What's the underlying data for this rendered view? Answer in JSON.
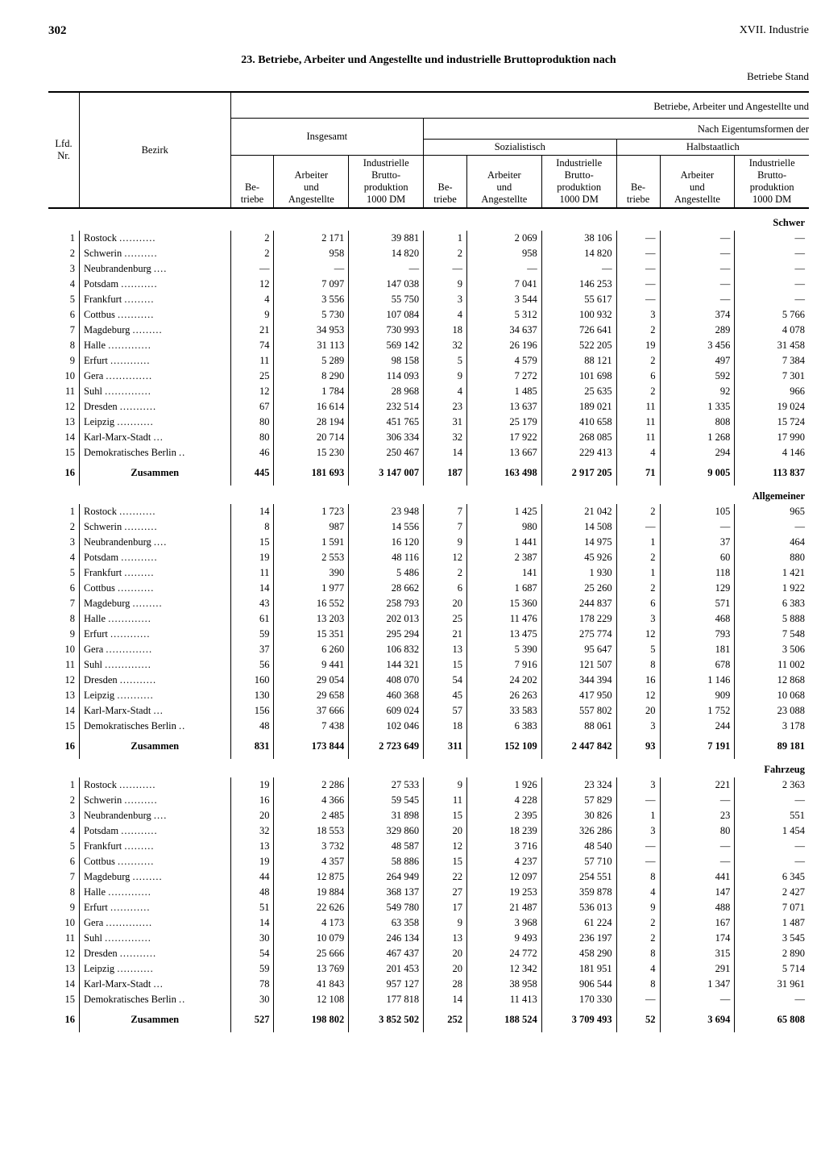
{
  "page_number": "302",
  "chapter": "XVII. Industrie",
  "title": "23. Betriebe, Arbeiter und Angestellte und industrielle Bruttoproduktion nach",
  "subtitle_right": "Betriebe Stand",
  "header": {
    "super_right": "Betriebe, Arbeiter und Angestellte und",
    "nach_eigentum": "Nach Eigentumsformen der",
    "lfd": "Lfd.\nNr.",
    "bezirk": "Bezirk",
    "insgesamt": "Insgesamt",
    "sozialistisch": "Sozialistisch",
    "halbstaatlich": "Halbstaatlich",
    "betriebe": "Be-\ntriebe",
    "arbeiter": "Arbeiter\nund\nAngestellte",
    "brutto": "Industrielle\nBrutto-\nproduktion\n1000 DM"
  },
  "section_labels": [
    "Schwer",
    "Allgemeiner",
    "Fahrzeug"
  ],
  "districts": [
    "Rostock",
    "Schwerin",
    "Neubrandenburg",
    "Potsdam",
    "Frankfurt",
    "Cottbus",
    "Magdeburg",
    "Halle",
    "Erfurt",
    "Gera",
    "Suhl",
    "Dresden",
    "Leipzig",
    "Karl-Marx-Stadt",
    "Demokratisches Berlin"
  ],
  "zusammen_label": "Zusammen",
  "sections": [
    {
      "rows": [
        [
          "2",
          "2 171",
          "39 881",
          "1",
          "2 069",
          "38 106",
          "—",
          "—",
          "—"
        ],
        [
          "2",
          "958",
          "14 820",
          "2",
          "958",
          "14 820",
          "—",
          "—",
          "—"
        ],
        [
          "—",
          "—",
          "—",
          "—",
          "—",
          "—",
          "—",
          "—",
          "—"
        ],
        [
          "12",
          "7 097",
          "147 038",
          "9",
          "7 041",
          "146 253",
          "—",
          "—",
          "—"
        ],
        [
          "4",
          "3 556",
          "55 750",
          "3",
          "3 544",
          "55 617",
          "—",
          "—",
          "—"
        ],
        [
          "9",
          "5 730",
          "107 084",
          "4",
          "5 312",
          "100 932",
          "3",
          "374",
          "5 766"
        ],
        [
          "21",
          "34 953",
          "730 993",
          "18",
          "34 637",
          "726 641",
          "2",
          "289",
          "4 078"
        ],
        [
          "74",
          "31 113",
          "569 142",
          "32",
          "26 196",
          "522 205",
          "19",
          "3 456",
          "31 458"
        ],
        [
          "11",
          "5 289",
          "98 158",
          "5",
          "4 579",
          "88 121",
          "2",
          "497",
          "7 384"
        ],
        [
          "25",
          "8 290",
          "114 093",
          "9",
          "7 272",
          "101 698",
          "6",
          "592",
          "7 301"
        ],
        [
          "12",
          "1 784",
          "28 968",
          "4",
          "1 485",
          "25 635",
          "2",
          "92",
          "966"
        ],
        [
          "67",
          "16 614",
          "232 514",
          "23",
          "13 637",
          "189 021",
          "11",
          "1 335",
          "19 024"
        ],
        [
          "80",
          "28 194",
          "451 765",
          "31",
          "25 179",
          "410 658",
          "11",
          "808",
          "15 724"
        ],
        [
          "80",
          "20 714",
          "306 334",
          "32",
          "17 922",
          "268 085",
          "11",
          "1 268",
          "17 990"
        ],
        [
          "46",
          "15 230",
          "250 467",
          "14",
          "13 667",
          "229 413",
          "4",
          "294",
          "4 146"
        ]
      ],
      "sum": [
        "445",
        "181 693",
        "3 147 007",
        "187",
        "163 498",
        "2 917 205",
        "71",
        "9 005",
        "113 837"
      ]
    },
    {
      "rows": [
        [
          "14",
          "1 723",
          "23 948",
          "7",
          "1 425",
          "21 042",
          "2",
          "105",
          "965"
        ],
        [
          "8",
          "987",
          "14 556",
          "7",
          "980",
          "14 508",
          "—",
          "—",
          "—"
        ],
        [
          "15",
          "1 591",
          "16 120",
          "9",
          "1 441",
          "14 975",
          "1",
          "37",
          "464"
        ],
        [
          "19",
          "2 553",
          "48 116",
          "12",
          "2 387",
          "45 926",
          "2",
          "60",
          "880"
        ],
        [
          "11",
          "390",
          "5 486",
          "2",
          "141",
          "1 930",
          "1",
          "118",
          "1 421"
        ],
        [
          "14",
          "1 977",
          "28 662",
          "6",
          "1 687",
          "25 260",
          "2",
          "129",
          "1 922"
        ],
        [
          "43",
          "16 552",
          "258 793",
          "20",
          "15 360",
          "244 837",
          "6",
          "571",
          "6 383"
        ],
        [
          "61",
          "13 203",
          "202 013",
          "25",
          "11 476",
          "178 229",
          "3",
          "468",
          "5 888"
        ],
        [
          "59",
          "15 351",
          "295 294",
          "21",
          "13 475",
          "275 774",
          "12",
          "793",
          "7 548"
        ],
        [
          "37",
          "6 260",
          "106 832",
          "13",
          "5 390",
          "95 647",
          "5",
          "181",
          "3 506"
        ],
        [
          "56",
          "9 441",
          "144 321",
          "15",
          "7 916",
          "121 507",
          "8",
          "678",
          "11 002"
        ],
        [
          "160",
          "29 054",
          "408 070",
          "54",
          "24 202",
          "344 394",
          "16",
          "1 146",
          "12 868"
        ],
        [
          "130",
          "29 658",
          "460 368",
          "45",
          "26 263",
          "417 950",
          "12",
          "909",
          "10 068"
        ],
        [
          "156",
          "37 666",
          "609 024",
          "57",
          "33 583",
          "557 802",
          "20",
          "1 752",
          "23 088"
        ],
        [
          "48",
          "7 438",
          "102 046",
          "18",
          "6 383",
          "88 061",
          "3",
          "244",
          "3 178"
        ]
      ],
      "sum": [
        "831",
        "173 844",
        "2 723 649",
        "311",
        "152 109",
        "2 447 842",
        "93",
        "7 191",
        "89 181"
      ]
    },
    {
      "rows": [
        [
          "19",
          "2 286",
          "27 533",
          "9",
          "1 926",
          "23 324",
          "3",
          "221",
          "2 363"
        ],
        [
          "16",
          "4 366",
          "59 545",
          "11",
          "4 228",
          "57 829",
          "—",
          "—",
          "—"
        ],
        [
          "20",
          "2 485",
          "31 898",
          "15",
          "2 395",
          "30 826",
          "1",
          "23",
          "551"
        ],
        [
          "32",
          "18 553",
          "329 860",
          "20",
          "18 239",
          "326 286",
          "3",
          "80",
          "1 454"
        ],
        [
          "13",
          "3 732",
          "48 587",
          "12",
          "3 716",
          "48 540",
          "—",
          "—",
          "—"
        ],
        [
          "19",
          "4 357",
          "58 886",
          "15",
          "4 237",
          "57 710",
          "—",
          "—",
          "—"
        ],
        [
          "44",
          "12 875",
          "264 949",
          "22",
          "12 097",
          "254 551",
          "8",
          "441",
          "6 345"
        ],
        [
          "48",
          "19 884",
          "368 137",
          "27",
          "19 253",
          "359 878",
          "4",
          "147",
          "2 427"
        ],
        [
          "51",
          "22 626",
          "549 780",
          "17",
          "21 487",
          "536 013",
          "9",
          "488",
          "7 071"
        ],
        [
          "14",
          "4 173",
          "63 358",
          "9",
          "3 968",
          "61 224",
          "2",
          "167",
          "1 487"
        ],
        [
          "30",
          "10 079",
          "246 134",
          "13",
          "9 493",
          "236 197",
          "2",
          "174",
          "3 545"
        ],
        [
          "54",
          "25 666",
          "467 437",
          "20",
          "24 772",
          "458 290",
          "8",
          "315",
          "2 890"
        ],
        [
          "59",
          "13 769",
          "201 453",
          "20",
          "12 342",
          "181 951",
          "4",
          "291",
          "5 714"
        ],
        [
          "78",
          "41 843",
          "957 127",
          "28",
          "38 958",
          "906 544",
          "8",
          "1 347",
          "31 961"
        ],
        [
          "30",
          "12 108",
          "177 818",
          "14",
          "11 413",
          "170 330",
          "—",
          "—",
          "—"
        ]
      ],
      "sum": [
        "527",
        "198 802",
        "3 852 502",
        "252",
        "188 524",
        "3 709 493",
        "52",
        "3 694",
        "65 808"
      ]
    }
  ]
}
